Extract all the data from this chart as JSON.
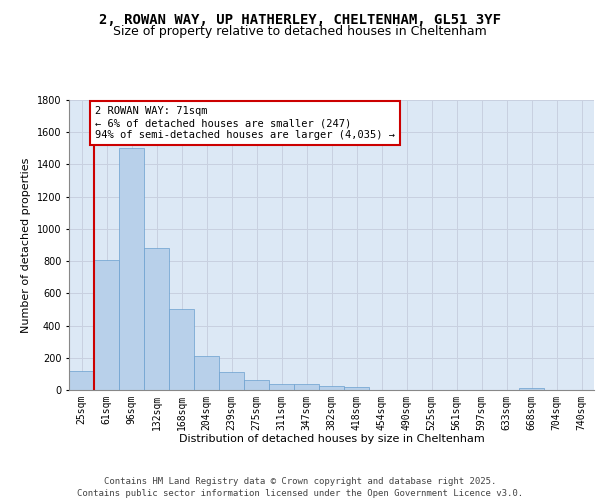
{
  "title_line1": "2, ROWAN WAY, UP HATHERLEY, CHELTENHAM, GL51 3YF",
  "title_line2": "Size of property relative to detached houses in Cheltenham",
  "xlabel": "Distribution of detached houses by size in Cheltenham",
  "ylabel": "Number of detached properties",
  "categories": [
    "25sqm",
    "61sqm",
    "96sqm",
    "132sqm",
    "168sqm",
    "204sqm",
    "239sqm",
    "275sqm",
    "311sqm",
    "347sqm",
    "382sqm",
    "418sqm",
    "454sqm",
    "490sqm",
    "525sqm",
    "561sqm",
    "597sqm",
    "633sqm",
    "668sqm",
    "704sqm",
    "740sqm"
  ],
  "values": [
    120,
    810,
    1500,
    880,
    500,
    210,
    110,
    65,
    40,
    35,
    25,
    20,
    0,
    0,
    0,
    0,
    0,
    0,
    15,
    0,
    0
  ],
  "bar_color": "#b8d0ea",
  "bar_edge_color": "#6a9fcf",
  "vline_color": "#cc0000",
  "annotation_text": "2 ROWAN WAY: 71sqm\n← 6% of detached houses are smaller (247)\n94% of semi-detached houses are larger (4,035) →",
  "annotation_box_color": "#ffffff",
  "annotation_box_edge": "#cc0000",
  "ylim": [
    0,
    1800
  ],
  "yticks": [
    0,
    200,
    400,
    600,
    800,
    1000,
    1200,
    1400,
    1600,
    1800
  ],
  "grid_color": "#c8d0e0",
  "bg_color": "#dce8f5",
  "footer": "Contains HM Land Registry data © Crown copyright and database right 2025.\nContains public sector information licensed under the Open Government Licence v3.0.",
  "title_fontsize": 10,
  "subtitle_fontsize": 9,
  "axis_label_fontsize": 8,
  "tick_fontsize": 7,
  "annotation_fontsize": 7.5,
  "footer_fontsize": 6.5
}
